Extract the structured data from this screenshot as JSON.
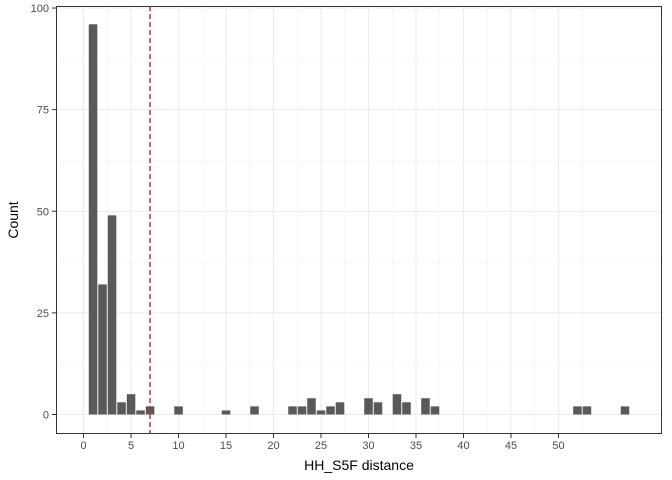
{
  "chart_data": {
    "type": "bar",
    "xlabel": "HH_S5F distance",
    "ylabel": "Count",
    "xlim": [
      -2.9,
      60.9
    ],
    "ylim": [
      -4.8,
      100.5
    ],
    "x_ticks": [
      0,
      5,
      10,
      15,
      20,
      25,
      30,
      35,
      40,
      45,
      50
    ],
    "y_ticks": [
      0,
      25,
      50,
      75,
      100
    ],
    "x": [
      1,
      2,
      3,
      4,
      5,
      6,
      7,
      10,
      15,
      18,
      22,
      23,
      24,
      25,
      26,
      27,
      30,
      31,
      33,
      34,
      36,
      37,
      52,
      53,
      57
    ],
    "values": [
      96,
      32,
      49,
      3,
      5,
      1,
      2,
      2,
      1,
      2,
      2,
      2,
      4,
      1,
      2,
      3,
      4,
      3,
      5,
      3,
      4,
      2,
      2,
      2,
      2
    ],
    "bar_color": "#595959",
    "reference_line": {
      "x": 7,
      "color": "#cc2222",
      "style": "dashed"
    },
    "grid": true
  }
}
